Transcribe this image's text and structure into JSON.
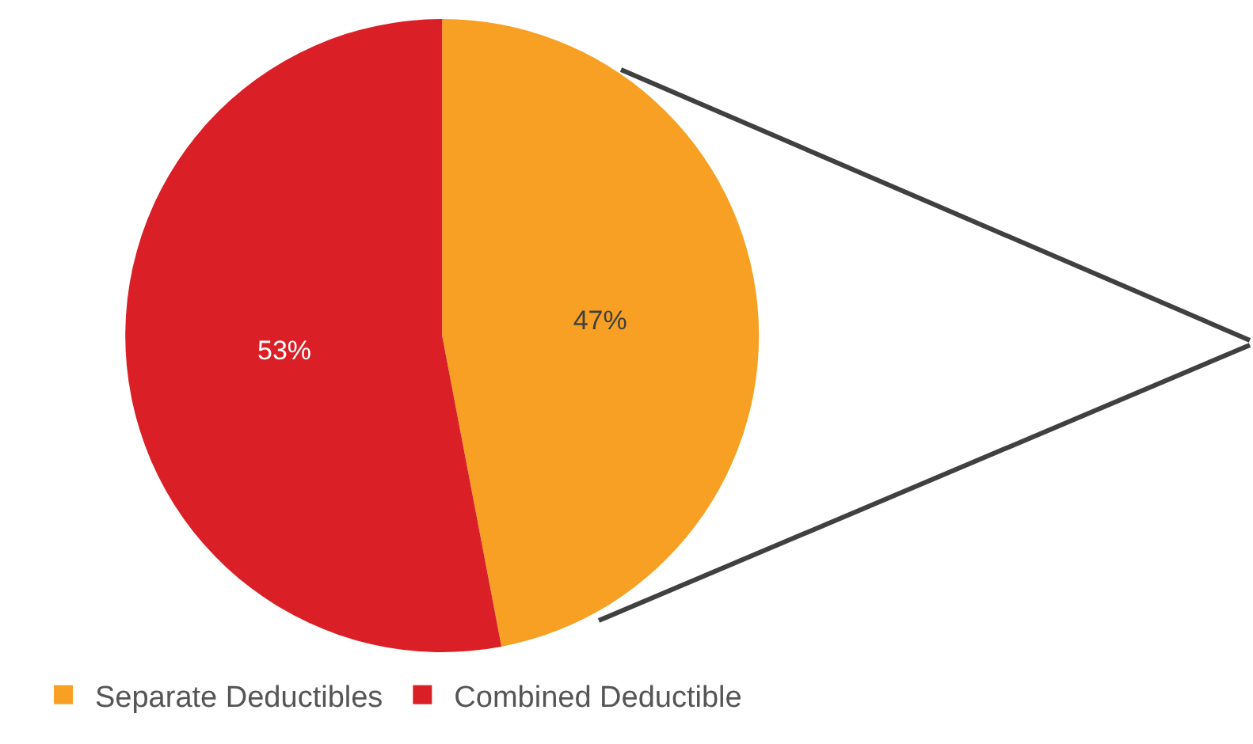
{
  "chart_data": {
    "type": "pie",
    "categories": [
      "Separate Deductibles",
      "Combined Deductible"
    ],
    "values": [
      47,
      53
    ],
    "colors": [
      "#f7a024",
      "#da1f26"
    ],
    "value_labels": [
      "47%",
      "53%"
    ],
    "legend": "bottom left"
  }
}
